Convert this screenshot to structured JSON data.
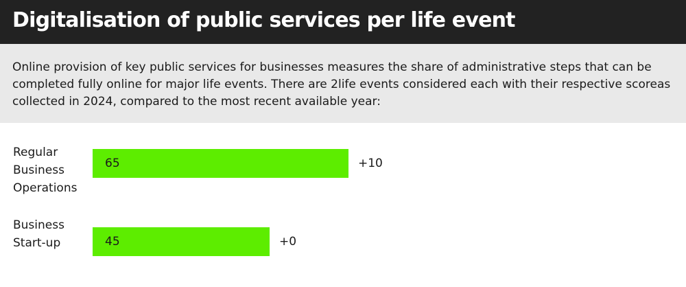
{
  "header": {
    "title": "Digitalisation of public services per life event"
  },
  "description": {
    "text": "Online provision of key public services for businesses measures the share of administrative steps that can be completed fully online for major life events. There are 2life events considered each with their respective scoreas collected in 2024, compared to the most recent available year:"
  },
  "colors": {
    "bar": "#5ded00",
    "header_bg": "#222222",
    "description_bg": "#e9e9e9"
  },
  "chart_data": {
    "type": "bar",
    "orientation": "horizontal",
    "categories": [
      "Regular\nBusiness\nOperations",
      "Business\nStart-up"
    ],
    "values": [
      65,
      45
    ],
    "value_labels": [
      "65",
      "45"
    ],
    "change_labels": [
      "+10",
      "+0"
    ],
    "xlim": [
      0,
      100
    ],
    "grid": false,
    "title": "",
    "xlabel": "",
    "ylabel": ""
  }
}
